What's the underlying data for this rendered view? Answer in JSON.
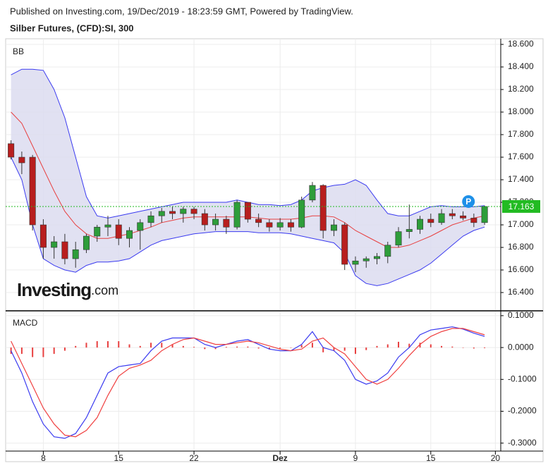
{
  "header": {
    "published": "Published on Investing.com, 19/Dec/2019 - 18:23:59 GMT, Powered by TradingView.",
    "instrument": "Silber Futures, (CFD):SI, 300"
  },
  "chart_data": [
    {
      "type": "candlestick",
      "indicator": "BB",
      "logo": "Investing",
      "logo_suffix": ".com",
      "marker": "P",
      "up_color": "#2e9d3a",
      "down_color": "#b81e1e",
      "band_fill": "#dcdcf0",
      "last_line_color": "#22bb22",
      "open": [
        17.72,
        17.6,
        17.6,
        17.0,
        16.8,
        16.85,
        16.7,
        16.78,
        16.9,
        16.98,
        17.0,
        16.88,
        16.95,
        17.02,
        17.08,
        17.12,
        17.1,
        17.14,
        17.1,
        17.0,
        17.05,
        16.98,
        17.2,
        17.05,
        17.02,
        16.98,
        17.02,
        16.98,
        17.22,
        17.35,
        16.95,
        17.0,
        16.65,
        16.68,
        16.7,
        16.72,
        16.82,
        16.94,
        16.96,
        17.05,
        17.02,
        17.1,
        17.08,
        17.06,
        17.02,
        null
      ],
      "high": [
        17.75,
        17.65,
        17.62,
        17.05,
        16.9,
        16.92,
        16.85,
        16.92,
        17.0,
        17.08,
        17.05,
        16.98,
        17.05,
        17.12,
        17.15,
        17.16,
        17.16,
        17.16,
        17.14,
        17.1,
        17.08,
        17.22,
        17.2,
        17.1,
        17.05,
        17.06,
        17.05,
        17.25,
        17.38,
        17.36,
        17.05,
        17.02,
        16.72,
        16.72,
        16.75,
        16.85,
        16.98,
        17.18,
        17.08,
        17.1,
        17.14,
        17.14,
        17.12,
        17.1,
        17.17,
        null
      ],
      "low": [
        17.58,
        17.45,
        16.95,
        16.7,
        16.7,
        16.65,
        16.62,
        16.75,
        16.85,
        16.9,
        16.82,
        16.8,
        16.78,
        16.98,
        17.02,
        17.05,
        17.02,
        17.05,
        16.95,
        16.95,
        16.92,
        16.96,
        17.02,
        16.98,
        16.94,
        16.95,
        16.94,
        16.97,
        17.2,
        16.88,
        16.9,
        16.6,
        16.58,
        16.62,
        16.65,
        16.66,
        16.8,
        16.88,
        16.92,
        16.98,
        17.0,
        17.05,
        17.04,
        16.98,
        17.0,
        null
      ],
      "close": [
        17.6,
        17.55,
        17.0,
        16.8,
        16.85,
        16.7,
        16.78,
        16.9,
        16.98,
        17.0,
        16.88,
        16.95,
        17.02,
        17.08,
        17.12,
        17.1,
        17.14,
        17.1,
        17.0,
        17.05,
        16.98,
        17.2,
        17.05,
        17.02,
        16.98,
        17.02,
        16.98,
        17.22,
        17.35,
        16.95,
        17.0,
        16.65,
        16.68,
        16.7,
        16.72,
        16.82,
        16.94,
        16.96,
        17.05,
        17.02,
        17.1,
        17.08,
        17.06,
        17.02,
        17.163,
        null
      ],
      "bands": {
        "upper": {
          "color": "#3a3af0",
          "values": [
            18.33,
            18.38,
            18.38,
            18.37,
            18.2,
            17.95,
            17.6,
            17.25,
            17.08,
            17.06,
            17.08,
            17.1,
            17.12,
            17.14,
            17.16,
            17.18,
            17.2,
            17.2,
            17.2,
            17.2,
            17.2,
            17.22,
            17.2,
            17.18,
            17.18,
            17.17,
            17.18,
            17.22,
            17.3,
            17.33,
            17.35,
            17.36,
            17.4,
            17.35,
            17.22,
            17.1,
            17.08,
            17.08,
            17.12,
            17.16,
            17.17,
            17.16,
            17.16,
            17.16,
            17.17,
            null
          ]
        },
        "middle": {
          "color": "#e84040",
          "values": [
            18.0,
            17.9,
            17.7,
            17.5,
            17.3,
            17.12,
            17.0,
            16.92,
            16.88,
            16.88,
            16.9,
            16.92,
            16.95,
            16.98,
            17.02,
            17.04,
            17.06,
            17.07,
            17.07,
            17.07,
            17.07,
            17.07,
            17.07,
            17.06,
            17.05,
            17.05,
            17.05,
            17.06,
            17.08,
            17.08,
            17.07,
            17.02,
            16.95,
            16.9,
            16.85,
            16.8,
            16.8,
            16.82,
            16.86,
            16.9,
            16.95,
            17.0,
            17.03,
            17.06,
            17.08,
            null
          ]
        },
        "lower": {
          "color": "#3a3af0",
          "values": [
            17.6,
            17.4,
            17.0,
            16.7,
            16.64,
            16.6,
            16.58,
            16.64,
            16.67,
            16.67,
            16.68,
            16.7,
            16.76,
            16.82,
            16.86,
            16.88,
            16.9,
            16.92,
            16.93,
            16.94,
            16.94,
            16.94,
            16.94,
            16.93,
            16.93,
            16.93,
            16.92,
            16.9,
            16.88,
            16.86,
            16.84,
            16.75,
            16.55,
            16.48,
            16.46,
            16.48,
            16.52,
            16.56,
            16.6,
            16.66,
            16.74,
            16.82,
            16.9,
            16.95,
            16.98,
            null
          ]
        }
      },
      "ylim": [
        16.244,
        18.65
      ],
      "yticks": [
        {
          "value": 16.4,
          "label": "16.400"
        },
        {
          "value": 16.6,
          "label": "16.600"
        },
        {
          "value": 16.8,
          "label": "16.800"
        },
        {
          "value": 17.0,
          "label": "17.000"
        },
        {
          "value": 17.2,
          "label": "17.200"
        },
        {
          "value": 17.4,
          "label": "17.400"
        },
        {
          "value": 17.6,
          "label": "17.600"
        },
        {
          "value": 17.8,
          "label": "17.800"
        },
        {
          "value": 18.0,
          "label": "18.000"
        },
        {
          "value": 18.2,
          "label": "18.200"
        },
        {
          "value": 18.4,
          "label": "18.400"
        },
        {
          "value": 18.6,
          "label": "18.600"
        }
      ],
      "grid": true
    },
    {
      "type": "macd",
      "indicator": "MACD",
      "categories": [
        null,
        null,
        null,
        "8",
        null,
        null,
        null,
        null,
        null,
        null,
        "15",
        null,
        null,
        null,
        null,
        null,
        null,
        "22",
        null,
        null,
        null,
        null,
        null,
        null,
        null,
        "Dez",
        null,
        null,
        null,
        null,
        null,
        null,
        "9",
        null,
        null,
        null,
        null,
        null,
        null,
        "15",
        null,
        null,
        null,
        null,
        null,
        "20"
      ],
      "series": [
        {
          "name": "MACD",
          "color": "#3a3af0",
          "values": [
            -0.01,
            -0.08,
            -0.17,
            -0.24,
            -0.28,
            -0.285,
            -0.27,
            -0.22,
            -0.15,
            -0.08,
            -0.06,
            -0.055,
            -0.05,
            -0.01,
            0.02,
            0.03,
            0.03,
            0.03,
            0.01,
            0.0,
            0.01,
            0.02,
            0.025,
            0.01,
            -0.005,
            -0.01,
            -0.01,
            0.01,
            0.05,
            0.0,
            -0.01,
            -0.04,
            -0.1,
            -0.115,
            -0.105,
            -0.08,
            -0.03,
            0.0,
            0.04,
            0.055,
            0.06,
            0.065,
            0.058,
            0.045,
            0.035,
            null
          ]
        },
        {
          "name": "Signal",
          "color": "#f04040",
          "values": [
            0.02,
            -0.05,
            -0.12,
            -0.19,
            -0.24,
            -0.275,
            -0.28,
            -0.26,
            -0.22,
            -0.15,
            -0.09,
            -0.065,
            -0.055,
            -0.04,
            -0.01,
            0.01,
            0.025,
            0.03,
            0.02,
            0.01,
            0.01,
            0.015,
            0.02,
            0.015,
            0.005,
            -0.005,
            -0.01,
            -0.005,
            0.02,
            0.03,
            0.0,
            -0.02,
            -0.06,
            -0.1,
            -0.115,
            -0.1,
            -0.065,
            -0.025,
            0.01,
            0.035,
            0.05,
            0.06,
            0.06,
            0.05,
            0.04,
            null
          ]
        }
      ],
      "histogram": {
        "color": "#e84040",
        "values": [
          -0.02,
          -0.02,
          -0.03,
          -0.03,
          -0.02,
          -0.01,
          0.005,
          0.015,
          0.02,
          0.02,
          0.02,
          0.01,
          0.005,
          0.015,
          0.015,
          0.01,
          0.005,
          0.002,
          -0.005,
          -0.005,
          0.002,
          0.003,
          0.003,
          -0.003,
          -0.005,
          -0.003,
          0.0,
          0.008,
          0.015,
          -0.015,
          -0.01,
          -0.01,
          -0.02,
          -0.008,
          0.005,
          0.01,
          0.018,
          0.012,
          0.015,
          0.01,
          0.005,
          0.003,
          -0.001,
          -0.003,
          -0.002,
          null
        ]
      },
      "ylim": [
        -0.325,
        0.113
      ],
      "yticks": [
        {
          "value": -0.3,
          "label": "-0.3000"
        },
        {
          "value": -0.2,
          "label": "-0.2000"
        },
        {
          "value": -0.1,
          "label": "-0.1000"
        },
        {
          "value": 0,
          "label": "0.0000"
        },
        {
          "value": 0.1,
          "label": "0.1000"
        }
      ],
      "grid": true
    }
  ]
}
